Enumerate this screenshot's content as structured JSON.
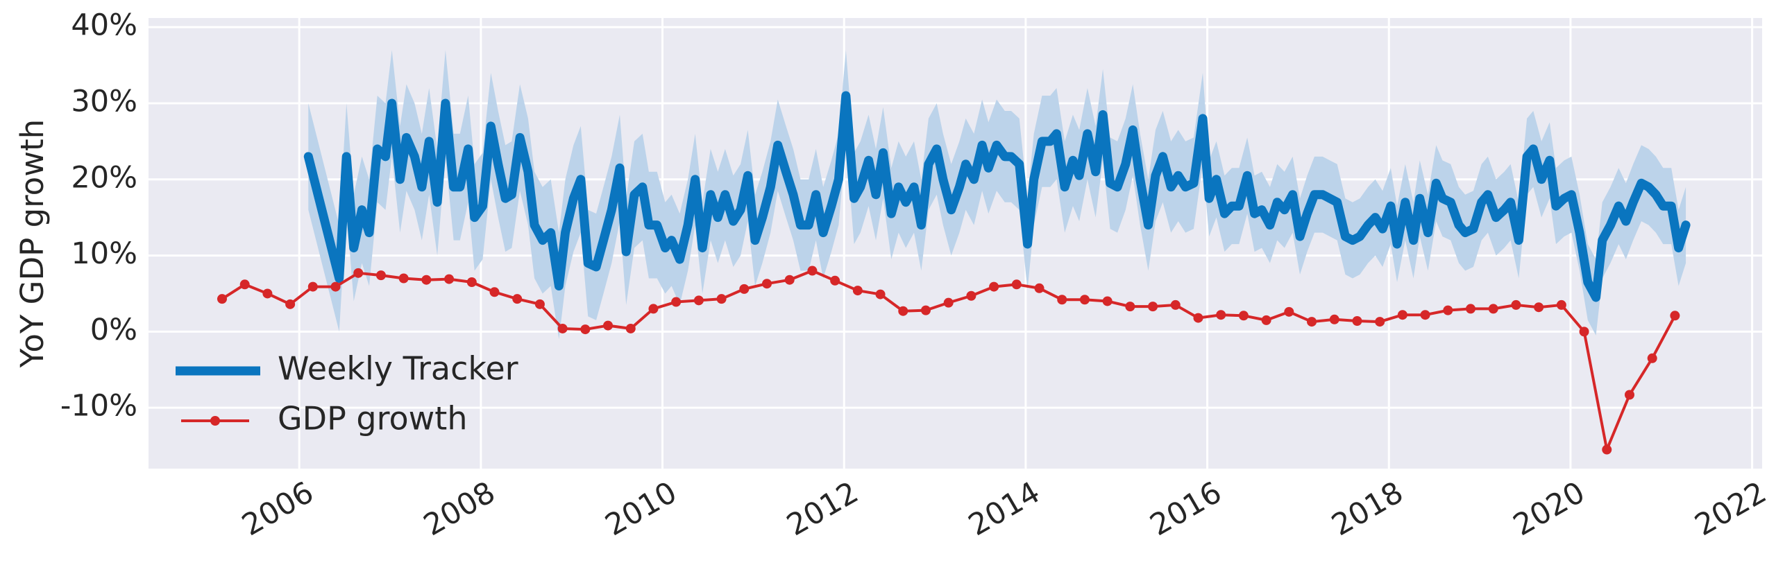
{
  "chart_data": {
    "type": "line",
    "y_label": "YoY GDP growth",
    "xlim": [
      2004.34,
      2022.11
    ],
    "ylim": [
      -18,
      41.2
    ],
    "xticks": [
      2006,
      2008,
      2010,
      2012,
      2014,
      2016,
      2018,
      2020,
      2022
    ],
    "yticks": [
      {
        "value": -10,
        "label": "-10%"
      },
      {
        "value": 0,
        "label": "0%"
      },
      {
        "value": 10,
        "label": "10%"
      },
      {
        "value": 20,
        "label": "20%"
      },
      {
        "value": 30,
        "label": "30%"
      },
      {
        "value": 40,
        "label": "40%"
      }
    ],
    "grid": true,
    "legend": "lower left",
    "series": [
      {
        "name": "Weekly Tracker",
        "color": "#0a75bf",
        "band_color": "#bcd3ea",
        "x": [
          2006.1,
          2006.44,
          2006.52,
          2006.6,
          2006.69,
          2006.77,
          2006.86,
          2006.95,
          2007.02,
          2007.11,
          2007.18,
          2007.27,
          2007.35,
          2007.43,
          2007.52,
          2007.61,
          2007.7,
          2007.77,
          2007.86,
          2007.93,
          2008.02,
          2008.11,
          2008.19,
          2008.27,
          2008.34,
          2008.43,
          2008.52,
          2008.59,
          2008.68,
          2008.77,
          2008.86,
          2008.93,
          2009.02,
          2009.1,
          2009.18,
          2009.27,
          2009.35,
          2009.44,
          2009.53,
          2009.6,
          2009.69,
          2009.78,
          2009.85,
          2009.94,
          2010.03,
          2010.1,
          2010.19,
          2010.28,
          2010.36,
          2010.44,
          2010.53,
          2010.61,
          2010.69,
          2010.78,
          2010.86,
          2010.94,
          2011.02,
          2011.1,
          2011.19,
          2011.27,
          2011.36,
          2011.44,
          2011.52,
          2011.61,
          2011.69,
          2011.77,
          2011.86,
          2011.94,
          2012.02,
          2012.11,
          2012.18,
          2012.27,
          2012.35,
          2012.43,
          2012.52,
          2012.6,
          2012.68,
          2012.77,
          2012.85,
          2012.93,
          2013.02,
          2013.09,
          2013.18,
          2013.27,
          2013.34,
          2013.43,
          2013.52,
          2013.59,
          2013.68,
          2013.77,
          2013.84,
          2013.93,
          2014.02,
          2014.09,
          2014.18,
          2014.27,
          2014.34,
          2014.43,
          2014.52,
          2014.59,
          2014.68,
          2014.77,
          2014.85,
          2014.93,
          2015.01,
          2015.1,
          2015.18,
          2015.26,
          2015.35,
          2015.43,
          2015.51,
          2015.6,
          2015.68,
          2015.76,
          2015.85,
          2015.95,
          2016.02,
          2016.1,
          2016.19,
          2016.27,
          2016.35,
          2016.44,
          2016.52,
          2016.6,
          2016.69,
          2016.77,
          2016.85,
          2016.94,
          2017.02,
          2017.1,
          2017.18,
          2017.27,
          2017.35,
          2017.43,
          2017.52,
          2017.6,
          2017.68,
          2017.77,
          2017.85,
          2017.93,
          2018.02,
          2018.09,
          2018.18,
          2018.27,
          2018.34,
          2018.43,
          2018.52,
          2018.59,
          2018.68,
          2018.77,
          2018.84,
          2018.93,
          2019.02,
          2019.09,
          2019.18,
          2019.27,
          2019.34,
          2019.43,
          2019.52,
          2019.59,
          2019.68,
          2019.77,
          2019.84,
          2019.93,
          2020.01,
          2020.1,
          2020.19,
          2020.28,
          2020.35,
          2020.44,
          2020.53,
          2020.61,
          2020.69,
          2020.78,
          2020.86,
          2020.94,
          2021.02,
          2021.11,
          2021.19,
          2021.27
        ],
        "values": [
          23,
          7,
          23,
          11,
          16,
          13,
          24,
          23,
          30,
          20,
          25.5,
          23,
          19,
          25,
          17,
          30,
          19,
          19,
          24,
          15,
          16.5,
          27,
          22,
          17.5,
          18,
          25.5,
          21,
          14,
          12,
          13,
          6,
          13,
          17.5,
          20,
          9,
          8.5,
          12,
          16,
          21.5,
          10.5,
          18,
          19,
          14,
          14,
          11,
          12,
          9.5,
          14,
          20,
          11,
          18,
          15,
          18,
          14.5,
          16,
          20.5,
          12,
          15,
          19,
          24.5,
          21,
          18,
          14,
          14,
          18,
          13,
          16.5,
          20,
          31,
          17.5,
          19,
          22.5,
          18,
          23.5,
          15.5,
          19,
          17,
          19,
          14,
          22,
          24,
          20,
          16,
          19,
          22,
          20,
          24.5,
          21.5,
          24.5,
          23,
          23,
          22,
          11.5,
          20,
          25,
          25,
          26,
          19,
          22.5,
          20.5,
          26,
          21,
          28.5,
          19.5,
          19,
          22,
          26.5,
          20,
          14,
          20.5,
          23,
          19,
          20.5,
          19,
          19.5,
          28,
          17.5,
          20,
          15.5,
          16.5,
          16.5,
          20.5,
          15.5,
          16,
          14,
          17,
          16,
          18,
          12.5,
          15.5,
          18,
          18,
          17.5,
          17,
          12.5,
          12,
          12.5,
          14,
          15,
          13.5,
          16.5,
          11.5,
          17,
          12,
          17.5,
          13,
          19.5,
          17.5,
          17,
          14,
          13,
          13.5,
          17,
          18,
          15,
          16,
          17,
          12,
          23,
          24,
          20,
          22.5,
          16.5,
          17.5,
          18,
          13,
          6.5,
          4.5,
          12,
          14,
          16.5,
          14.5,
          17,
          19.5,
          19,
          18,
          16.5,
          16.5,
          11,
          14
        ],
        "upper": [
          30,
          14,
          30,
          18,
          23,
          20,
          31,
          30,
          37,
          27,
          32.5,
          30,
          26,
          32,
          24,
          37,
          26,
          26,
          31,
          22,
          23.5,
          34,
          29,
          24.5,
          25,
          32.5,
          28,
          21,
          19,
          20,
          13,
          20,
          24.5,
          27,
          16,
          15.5,
          19,
          23,
          28.5,
          17.5,
          25,
          26,
          21,
          21,
          17,
          18,
          15.5,
          20,
          26,
          17,
          24,
          21,
          24,
          20.5,
          22,
          26.5,
          18,
          21,
          25,
          30.5,
          27,
          24,
          20,
          20,
          24,
          19,
          22.5,
          26,
          37,
          23.5,
          25,
          28.5,
          24,
          29.5,
          21.5,
          25,
          23,
          25,
          20,
          28,
          30,
          26,
          22,
          25,
          28,
          26,
          30.5,
          27.5,
          30.5,
          29,
          29,
          28,
          17.5,
          26,
          31,
          31,
          32,
          25,
          28.5,
          26.5,
          32,
          27,
          34.5,
          25.5,
          25,
          28,
          32.5,
          26,
          20,
          26.5,
          29,
          25,
          26.5,
          25,
          25.5,
          34,
          22.5,
          25,
          20.5,
          21.5,
          21.5,
          25.5,
          20.5,
          21,
          19,
          22,
          21,
          23,
          17.5,
          20.5,
          23,
          23,
          22.5,
          22,
          17.5,
          17,
          17.5,
          19,
          20,
          18.5,
          21.5,
          16.5,
          22,
          17,
          22.5,
          18,
          24.5,
          22.5,
          22,
          19,
          18,
          18.5,
          22,
          23,
          20,
          21,
          22,
          17,
          28,
          29,
          25,
          27.5,
          21.5,
          22.5,
          23,
          18,
          11.5,
          9.5,
          17,
          19,
          21.5,
          19.5,
          22,
          24.5,
          24,
          23,
          21.5,
          21.5,
          16,
          19
        ],
        "lower": [
          16,
          0,
          16,
          4,
          9,
          6,
          17,
          16,
          23,
          13,
          18.5,
          16,
          12,
          18,
          10,
          23,
          12,
          12,
          17,
          8,
          9.5,
          20,
          15,
          10.5,
          11,
          18.5,
          14,
          7,
          5,
          6,
          -1,
          6,
          10.5,
          13,
          2,
          1.5,
          5,
          9,
          14.5,
          3.5,
          11,
          12,
          7,
          7,
          5,
          6,
          3.5,
          8,
          14,
          5,
          12,
          9,
          12,
          8.5,
          10,
          14.5,
          6,
          9,
          13,
          18.5,
          15,
          12,
          8,
          8,
          12,
          7,
          10.5,
          14,
          25,
          11.5,
          13,
          16.5,
          12,
          17.5,
          9.5,
          13,
          11,
          13,
          8,
          16,
          18,
          14,
          10,
          13,
          16,
          14,
          18.5,
          15.5,
          18.5,
          17,
          17,
          16,
          5.5,
          14,
          19,
          19,
          20,
          13,
          16.5,
          14.5,
          20,
          15,
          22.5,
          13.5,
          13,
          16,
          20.5,
          14,
          8,
          14.5,
          17,
          13,
          14.5,
          13,
          13.5,
          22,
          12.5,
          15,
          10.5,
          11.5,
          11.5,
          15.5,
          10.5,
          11,
          9,
          12,
          11,
          13,
          7.5,
          10.5,
          13,
          13,
          12.5,
          12,
          7.5,
          7,
          7.5,
          9,
          10,
          8.5,
          11.5,
          6.5,
          12,
          7,
          12.5,
          8,
          14.5,
          12.5,
          12,
          9,
          8,
          8.5,
          12,
          13,
          10,
          11,
          12,
          7,
          18,
          19,
          15,
          17.5,
          11.5,
          12.5,
          13,
          8,
          1.5,
          -0.5,
          7,
          9,
          11.5,
          9.5,
          12,
          14.5,
          14,
          13,
          11.5,
          11.5,
          6,
          9
        ]
      },
      {
        "name": "GDP growth",
        "color": "#d62728",
        "marker": "o",
        "x": [
          2005.15,
          2005.4,
          2005.65,
          2005.9,
          2006.15,
          2006.4,
          2006.65,
          2006.9,
          2007.15,
          2007.4,
          2007.65,
          2007.9,
          2008.15,
          2008.4,
          2008.65,
          2008.9,
          2009.15,
          2009.4,
          2009.65,
          2009.9,
          2010.15,
          2010.4,
          2010.65,
          2010.9,
          2011.15,
          2011.4,
          2011.65,
          2011.9,
          2012.15,
          2012.4,
          2012.65,
          2012.9,
          2013.15,
          2013.4,
          2013.65,
          2013.9,
          2014.15,
          2014.4,
          2014.65,
          2014.9,
          2015.15,
          2015.4,
          2015.65,
          2015.9,
          2016.15,
          2016.4,
          2016.65,
          2016.9,
          2017.15,
          2017.4,
          2017.65,
          2017.9,
          2018.15,
          2018.4,
          2018.65,
          2018.9,
          2019.15,
          2019.4,
          2019.65,
          2019.9,
          2020.15,
          2020.4,
          2020.65,
          2020.9,
          2021.15
        ],
        "values": [
          4.3,
          6.2,
          5.0,
          3.6,
          5.9,
          5.9,
          7.7,
          7.4,
          7.0,
          6.8,
          6.9,
          6.5,
          5.2,
          4.3,
          3.6,
          0.4,
          0.3,
          0.8,
          0.4,
          3.0,
          3.9,
          4.1,
          4.3,
          5.6,
          6.3,
          6.8,
          8.0,
          6.7,
          5.4,
          4.9,
          2.7,
          2.8,
          3.8,
          4.7,
          5.9,
          6.2,
          5.7,
          4.2,
          4.2,
          4.0,
          3.3,
          3.3,
          3.5,
          1.8,
          2.2,
          2.1,
          1.5,
          2.6,
          1.3,
          1.6,
          1.4,
          1.3,
          2.2,
          2.2,
          2.8,
          3.0,
          3.0,
          3.5,
          3.2,
          3.5,
          0.0,
          -15.5,
          -8.3,
          -3.5,
          2.1
        ]
      }
    ]
  }
}
